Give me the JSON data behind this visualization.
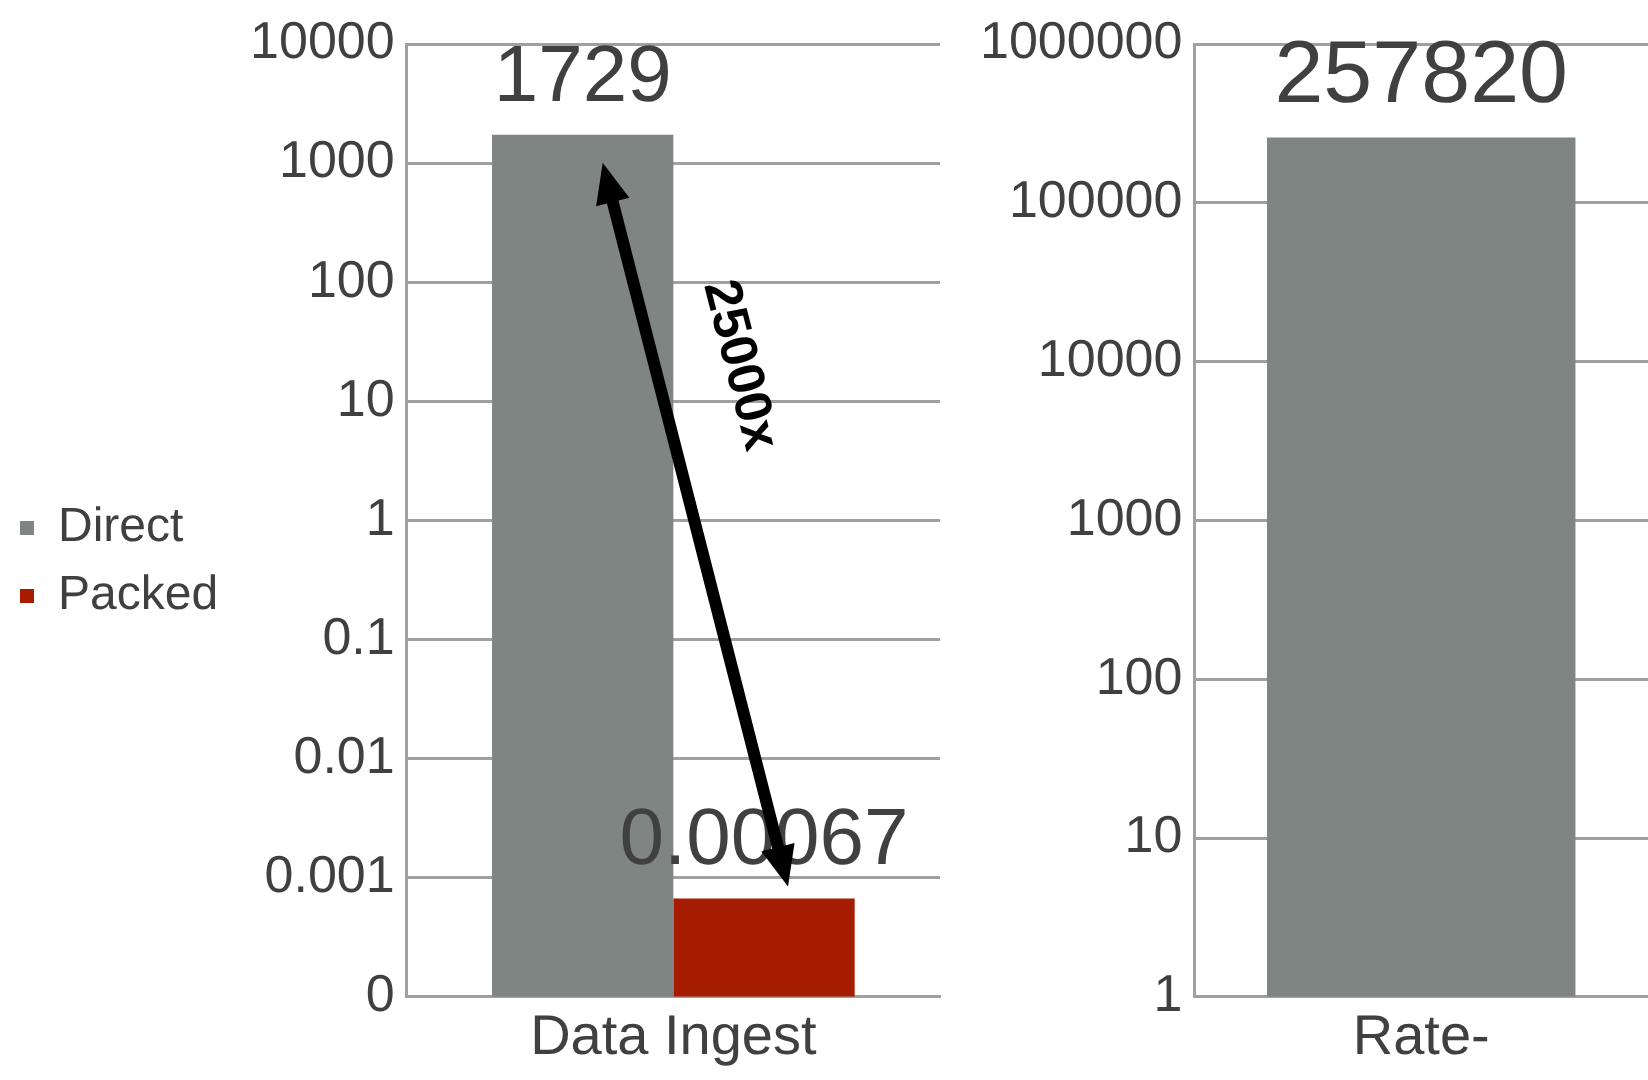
{
  "chart_data": [
    {
      "type": "bar",
      "categories": [
        "Data Ingest"
      ],
      "series": [
        {
          "name": "Direct",
          "color": "#7f8582",
          "values": [
            1729
          ]
        },
        {
          "name": "Packed",
          "color": "#a61c00",
          "values": [
            0.00067
          ]
        }
      ],
      "log": "y",
      "ylim": [
        0.0001,
        10000
      ],
      "yticks": [
        {
          "value": 0.0001,
          "label": "0"
        },
        0.001,
        0.01,
        0.1,
        1,
        10,
        100,
        1000,
        10000
      ],
      "grid": "y",
      "legend": "left",
      "data_labels": true,
      "annotations": [
        "25000x"
      ]
    },
    {
      "type": "bar",
      "categories": [
        "Rate-"
      ],
      "series": [
        {
          "color": "#7f8582",
          "values": [
            257820
          ]
        }
      ],
      "log": "y",
      "ylim": [
        1,
        1000000
      ],
      "yticks": [
        1,
        10,
        100,
        1000,
        10000,
        100000,
        1000000
      ],
      "grid": "y",
      "legend": false,
      "data_labels": true
    }
  ]
}
